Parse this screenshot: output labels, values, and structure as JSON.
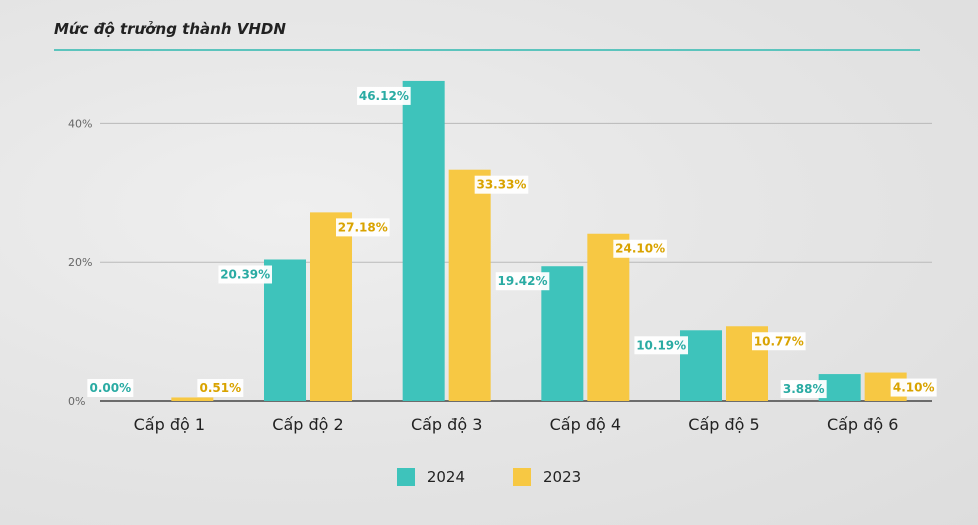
{
  "title": "Mức độ trưởng thành VHDN",
  "colors": {
    "s2024": "#3ec3bb",
    "s2023": "#f7c843",
    "grid": "#b9b9b9",
    "label2024": "#2aaba3",
    "label2023": "#d9a300"
  },
  "chart_data": {
    "type": "bar",
    "title": "Mức độ trưởng thành VHDN",
    "categories": [
      "Cấp độ 1",
      "Cấp độ 2",
      "Cấp độ 3",
      "Cấp độ 4",
      "Cấp độ 5",
      "Cấp độ 6"
    ],
    "series": [
      {
        "name": "2024",
        "values": [
          0.0,
          20.39,
          46.12,
          19.42,
          10.19,
          3.88
        ],
        "labels": [
          "0.00%",
          "20.39%",
          "46.12%",
          "19.42%",
          "10.19%",
          "3.88%"
        ]
      },
      {
        "name": "2023",
        "values": [
          0.51,
          27.18,
          33.33,
          24.1,
          10.77,
          4.1
        ],
        "labels": [
          "0.51%",
          "27.18%",
          "33.33%",
          "24.10%",
          "10.77%",
          "4.10%"
        ]
      }
    ],
    "yticks": [
      "0%",
      "20%",
      "40%"
    ],
    "ytick_values": [
      0,
      20,
      40
    ],
    "ylim": [
      0,
      50
    ],
    "grid": true,
    "legend_position": "bottom"
  }
}
